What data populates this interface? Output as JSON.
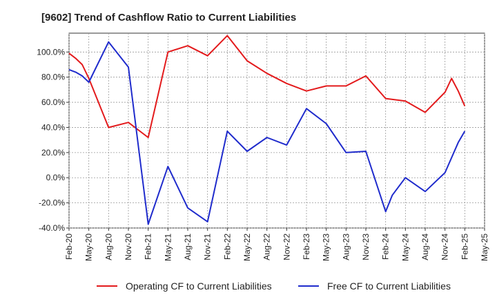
{
  "chart_data": {
    "type": "line",
    "title": "[9602]  Trend of Cashflow Ratio to Current Liabilities",
    "xlabel": "",
    "ylabel": "",
    "x_tick_labels": [
      "Feb-20",
      "May-20",
      "Aug-20",
      "Nov-20",
      "Feb-21",
      "May-21",
      "Aug-21",
      "Nov-21",
      "Feb-22",
      "May-22",
      "Aug-22",
      "Nov-22",
      "Feb-23",
      "May-23",
      "Aug-23",
      "Nov-23",
      "Feb-24",
      "May-24",
      "Aug-24",
      "Nov-24",
      "Feb-25",
      "May-25"
    ],
    "y_tick_labels": [
      "100.0%",
      "80.0%",
      "60.0%",
      "40.0%",
      "20.0%",
      "0.0%",
      "-20.0%",
      "-40.0%"
    ],
    "y_ticks": [
      100,
      80,
      60,
      40,
      20,
      0,
      -20,
      -40
    ],
    "ylim": [
      -40,
      115
    ],
    "grid": true,
    "legend_position": "bottom",
    "series": [
      {
        "name": "Operating CF to Current Liabilities",
        "color": "#e31a1c",
        "x": [
          "Feb-20",
          "Mar-20",
          "Apr-20",
          "May-20",
          "Aug-20",
          "Nov-20",
          "Feb-21",
          "May-21",
          "Aug-21",
          "Nov-21",
          "Feb-22",
          "May-22",
          "Aug-22",
          "Nov-22",
          "Feb-23",
          "May-23",
          "Aug-23",
          "Nov-23",
          "Feb-24",
          "May-24",
          "Aug-24",
          "Nov-24",
          "Dec-24",
          "Jan-25",
          "Feb-25"
        ],
        "values": [
          99,
          95,
          90,
          79,
          40,
          44,
          32,
          100,
          105,
          97,
          113,
          93,
          83,
          75,
          69,
          73,
          73,
          81,
          63,
          61,
          52,
          68,
          79,
          69,
          57
        ]
      },
      {
        "name": "Free CF to Current Liabilities",
        "color": "#1f2bcc",
        "x": [
          "Feb-20",
          "Mar-20",
          "Apr-20",
          "May-20",
          "Aug-20",
          "Nov-20",
          "Feb-21",
          "May-21",
          "Aug-21",
          "Nov-21",
          "Feb-22",
          "May-22",
          "Aug-22",
          "Nov-22",
          "Feb-23",
          "May-23",
          "Aug-23",
          "Nov-23",
          "Feb-24",
          "Mar-24",
          "May-24",
          "Aug-24",
          "Nov-24",
          "Jan-25",
          "Feb-25"
        ],
        "values": [
          86,
          84,
          81,
          76,
          108,
          88,
          -37,
          9,
          -24,
          -35,
          37,
          21,
          32,
          26,
          55,
          43,
          20,
          21,
          -27,
          -14,
          0,
          -11,
          4,
          28,
          37
        ]
      }
    ]
  }
}
